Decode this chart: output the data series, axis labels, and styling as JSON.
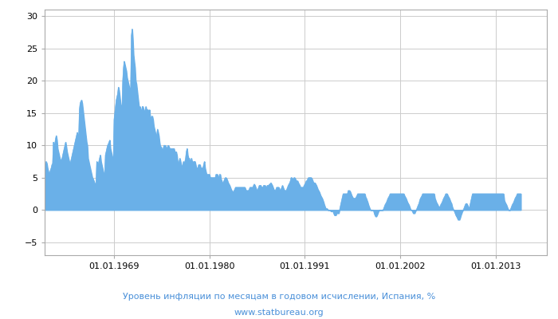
{
  "title_line1": "Уровень инфляции по месяцам в годовом исчислении, Испания, %",
  "title_line2": "www.statbureau.org",
  "title_color": "#4a90d9",
  "fill_color": "#6ab0e8",
  "line_color": "#6ab0e8",
  "background_color": "#ffffff",
  "grid_color": "#cccccc",
  "ylim": [
    -7,
    31
  ],
  "yticks": [
    -5,
    0,
    5,
    10,
    15,
    20,
    25,
    30
  ],
  "xtick_labels": [
    "01.01.1969",
    "01.01.1980",
    "01.01.1991",
    "01.01.2002",
    "01.01.2013"
  ],
  "xtick_years": [
    1969,
    1980,
    1991,
    2002,
    2013
  ],
  "start_year": 1961,
  "end_year": 2018,
  "inflation_data": [
    6.8,
    7.0,
    7.5,
    7.2,
    6.5,
    6.0,
    5.5,
    5.8,
    6.2,
    6.5,
    7.0,
    7.2,
    10.5,
    9.8,
    10.2,
    11.0,
    11.5,
    10.8,
    9.5,
    9.0,
    8.5,
    8.0,
    7.5,
    7.8,
    8.0,
    8.5,
    9.0,
    9.5,
    10.0,
    10.5,
    9.8,
    9.0,
    8.5,
    8.0,
    7.5,
    7.0,
    7.5,
    8.0,
    8.5,
    9.0,
    9.5,
    10.0,
    10.5,
    11.0,
    11.5,
    12.0,
    11.5,
    11.0,
    15.5,
    16.5,
    16.8,
    17.0,
    16.5,
    15.5,
    14.5,
    13.5,
    12.5,
    11.5,
    10.5,
    10.0,
    8.0,
    7.5,
    7.0,
    6.5,
    6.0,
    5.5,
    5.0,
    4.8,
    4.5,
    4.2,
    4.0,
    3.8,
    7.5,
    7.2,
    7.0,
    7.5,
    8.0,
    8.5,
    7.5,
    7.0,
    6.5,
    6.0,
    5.5,
    5.2,
    8.5,
    9.0,
    9.5,
    10.0,
    10.2,
    10.5,
    10.8,
    9.5,
    9.0,
    8.5,
    8.0,
    7.5,
    14.0,
    15.0,
    16.0,
    17.0,
    17.5,
    18.0,
    19.0,
    18.5,
    17.5,
    16.5,
    16.0,
    15.5,
    20.0,
    22.0,
    23.0,
    22.5,
    22.0,
    21.5,
    20.5,
    20.0,
    19.5,
    19.0,
    18.5,
    19.0,
    27.0,
    28.0,
    26.5,
    24.0,
    23.0,
    22.0,
    20.0,
    19.5,
    18.5,
    17.5,
    16.5,
    15.5,
    16.0,
    15.5,
    15.0,
    16.0,
    16.0,
    15.5,
    15.0,
    15.5,
    16.0,
    15.5,
    15.5,
    15.5,
    15.0,
    15.5,
    14.5,
    14.0,
    14.5,
    14.5,
    14.0,
    13.0,
    12.5,
    12.0,
    11.5,
    11.5,
    12.5,
    12.0,
    11.5,
    10.5,
    9.8,
    9.8,
    9.5,
    9.0,
    9.5,
    10.0,
    10.0,
    10.0,
    9.5,
    9.5,
    9.8,
    10.0,
    9.8,
    9.5,
    9.5,
    9.5,
    9.5,
    9.5,
    9.5,
    9.5,
    9.0,
    9.0,
    9.0,
    8.5,
    7.5,
    7.0,
    7.5,
    8.0,
    7.5,
    7.0,
    6.5,
    7.0,
    7.5,
    7.0,
    7.5,
    8.0,
    9.0,
    9.5,
    8.5,
    8.0,
    8.0,
    7.5,
    7.5,
    8.0,
    7.5,
    7.0,
    7.5,
    7.5,
    7.5,
    7.0,
    6.5,
    6.5,
    6.5,
    7.0,
    7.0,
    7.0,
    6.5,
    6.5,
    6.5,
    6.5,
    7.0,
    7.5,
    6.5,
    6.0,
    5.5,
    5.5,
    5.5,
    5.5,
    5.5,
    5.0,
    5.0,
    5.0,
    5.0,
    5.0,
    5.0,
    5.0,
    5.0,
    5.5,
    5.5,
    5.5,
    5.0,
    5.0,
    5.5,
    5.5,
    4.8,
    4.5,
    4.2,
    4.2,
    4.5,
    4.8,
    5.0,
    5.0,
    4.8,
    4.5,
    4.2,
    4.0,
    3.8,
    3.5,
    3.2,
    3.0,
    2.8,
    2.8,
    3.0,
    3.2,
    3.5,
    3.5,
    3.5,
    3.5,
    3.5,
    3.5,
    3.5,
    3.5,
    3.5,
    3.5,
    3.5,
    3.5,
    3.5,
    3.5,
    3.2,
    3.0,
    3.0,
    3.0,
    3.0,
    3.2,
    3.5,
    3.5,
    3.5,
    3.5,
    3.5,
    3.8,
    4.0,
    3.8,
    3.5,
    3.2,
    3.0,
    3.2,
    3.5,
    3.8,
    3.8,
    3.8,
    3.5,
    3.5,
    3.5,
    3.8,
    3.8,
    3.8,
    3.5,
    3.5,
    3.8,
    3.8,
    3.8,
    4.0,
    4.0,
    4.2,
    4.0,
    3.8,
    3.5,
    3.2,
    3.0,
    3.0,
    3.2,
    3.5,
    3.5,
    3.5,
    3.5,
    3.2,
    3.0,
    3.2,
    3.5,
    3.8,
    3.5,
    3.2,
    3.0,
    3.0,
    3.0,
    3.2,
    3.5,
    3.8,
    4.0,
    4.2,
    4.5,
    5.0,
    5.0,
    4.8,
    4.8,
    5.0,
    5.0,
    4.8,
    4.5,
    4.5,
    4.5,
    4.2,
    4.0,
    3.8,
    3.5,
    3.5,
    3.5,
    3.5,
    3.5,
    3.8,
    4.0,
    4.2,
    4.5,
    4.5,
    4.8,
    5.0,
    5.0,
    5.0,
    5.0,
    5.0,
    4.8,
    4.5,
    4.2,
    4.2,
    4.2,
    4.0,
    3.8,
    3.5,
    3.2,
    3.0,
    2.8,
    2.5,
    2.2,
    2.0,
    1.8,
    1.5,
    1.2,
    0.8,
    0.5,
    0.2,
    0.2,
    0.2,
    0.0,
    0.0,
    0.0,
    0.0,
    -0.2,
    -0.2,
    -0.2,
    -0.2,
    -0.5,
    -0.8,
    -0.8,
    -0.8,
    -0.5,
    -0.5,
    -0.5,
    -0.5,
    0.0,
    0.5,
    1.0,
    1.5,
    2.0,
    2.5,
    2.5,
    2.5,
    2.5,
    2.5,
    2.5,
    2.5,
    3.0,
    3.0,
    3.0,
    2.8,
    2.5,
    2.2,
    2.0,
    1.8,
    1.8,
    1.8,
    1.8,
    2.0,
    2.2,
    2.5,
    2.5,
    2.5,
    2.5,
    2.5,
    2.5,
    2.5,
    2.5,
    2.5,
    2.5,
    2.5,
    2.0,
    1.8,
    1.5,
    1.2,
    0.8,
    0.5,
    0.2,
    0.0,
    0.0,
    0.0,
    0.0,
    0.0,
    -0.5,
    -0.8,
    -1.0,
    -1.0,
    -0.8,
    -0.5,
    -0.2,
    0.0,
    0.0,
    0.0,
    0.0,
    0.0,
    0.0,
    0.2,
    0.5,
    0.8,
    1.0,
    1.2,
    1.5,
    1.8,
    2.0,
    2.2,
    2.5,
    2.5,
    2.5,
    2.5,
    2.5,
    2.5,
    2.5,
    2.5,
    2.5,
    2.5,
    2.5,
    2.5,
    2.5,
    2.5,
    2.5,
    2.5,
    2.5,
    2.5,
    2.5,
    2.5,
    2.2,
    2.0,
    1.8,
    1.5,
    1.2,
    1.0,
    0.8,
    0.5,
    0.2,
    0.0,
    0.0,
    -0.2,
    -0.5,
    -0.5,
    -0.5,
    -0.2,
    0.0,
    0.2,
    0.5,
    0.8,
    1.0,
    1.5,
    1.8,
    2.0,
    2.2,
    2.5,
    2.5,
    2.5,
    2.5,
    2.5,
    2.5,
    2.5,
    2.5,
    2.5,
    2.5,
    2.5,
    2.5,
    2.5,
    2.5,
    2.5,
    2.5,
    2.5,
    1.8,
    1.5,
    1.2,
    1.0,
    0.8,
    0.5,
    0.5,
    0.5,
    0.8,
    1.0,
    1.2,
    1.5,
    1.8,
    2.0,
    2.2,
    2.5,
    2.5,
    2.5,
    2.2,
    2.0,
    1.8,
    1.5,
    1.2,
    1.0,
    0.5,
    0.2,
    0.0,
    -0.2,
    -0.5,
    -0.8,
    -1.0,
    -1.2,
    -1.5,
    -1.5,
    -1.5,
    -1.2,
    -0.8,
    -0.5,
    -0.2,
    0.0,
    0.2,
    0.5,
    0.8,
    1.0,
    1.0,
    0.8,
    0.5,
    0.2,
    0.5,
    1.0,
    1.5,
    2.0,
    2.5,
    2.5,
    2.5,
    2.5,
    2.5,
    2.5,
    2.5,
    2.5,
    2.5,
    2.5,
    2.5,
    2.5,
    2.5,
    2.5,
    2.5,
    2.5,
    2.5,
    2.5,
    2.5,
    2.5,
    2.5,
    2.5,
    2.5,
    2.5,
    2.5,
    2.5,
    2.5,
    2.5,
    2.5,
    2.5,
    2.5,
    2.5,
    2.5,
    2.5,
    2.5,
    2.5,
    2.5,
    2.5,
    2.5,
    2.5,
    2.5,
    2.5,
    2.5,
    2.5,
    1.5,
    1.2,
    1.0,
    0.8,
    0.5,
    0.2,
    0.0,
    0.0,
    0.0,
    0.2,
    0.5,
    0.8,
    1.0,
    1.2,
    1.5,
    1.8,
    2.0,
    2.2,
    2.5,
    2.5,
    2.5,
    2.5,
    2.5,
    2.5
  ]
}
